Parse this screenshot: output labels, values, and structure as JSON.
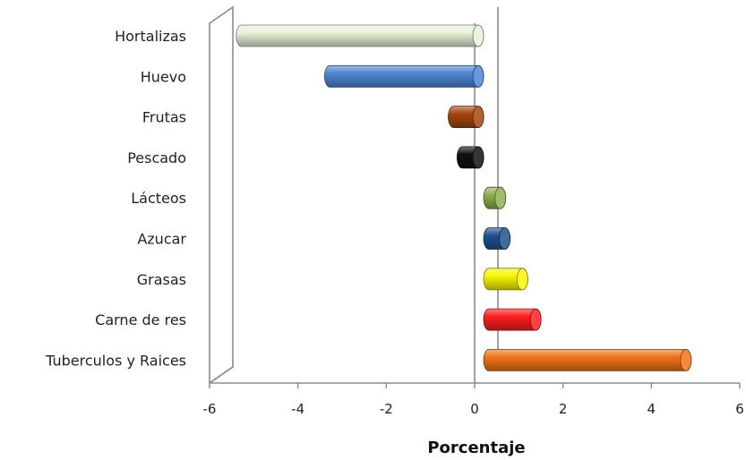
{
  "chart_data": {
    "type": "bar",
    "orientation": "horizontal",
    "categories": [
      "Hortalizas",
      "Huevo",
      "Frutas",
      "Pescado",
      "Lácteos",
      "Azucar",
      "Grasas",
      "Carne de res",
      "Tuberculos y Raices"
    ],
    "values": [
      -5.6,
      -3.6,
      -0.8,
      -0.6,
      0.5,
      0.6,
      1.0,
      1.3,
      4.7
    ],
    "bar_colors": [
      "#e8f2d8",
      "#4f87d4",
      "#a5460c",
      "#111111",
      "#8fb04c",
      "#21518f",
      "#f7f700",
      "#ff1e1e",
      "#f27418"
    ],
    "xlabel": "Porcentaje",
    "xlim": [
      -6,
      6
    ],
    "xticks": [
      -6,
      -4,
      -2,
      0,
      2,
      4,
      6
    ],
    "grid": false,
    "legend": "none"
  }
}
